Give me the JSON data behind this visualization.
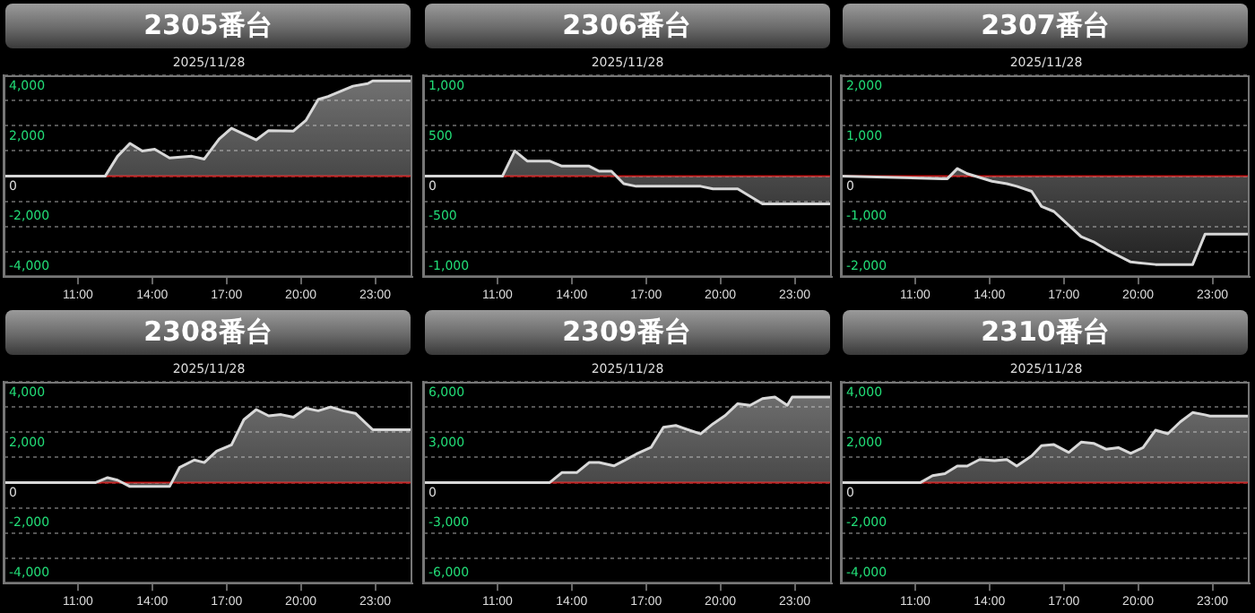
{
  "chart_data": [
    {
      "type": "area",
      "title": "2305番台",
      "subtitle": "2025/11/28",
      "xlim": [
        8,
        24.5
      ],
      "xticks": [
        {
          "value": 11,
          "label": "11:00"
        },
        {
          "value": 14,
          "label": "14:00"
        },
        {
          "value": 17,
          "label": "17:00"
        },
        {
          "value": 20,
          "label": "20:00"
        },
        {
          "value": 23,
          "label": "23:00"
        }
      ],
      "ylim": [
        -4000,
        4000
      ],
      "yticks": [
        {
          "value": 4000,
          "label": "4,000"
        },
        {
          "value": 3000,
          "label": null
        },
        {
          "value": 2000,
          "label": "2,000"
        },
        {
          "value": 1000,
          "label": null
        },
        0,
        {
          "value": -1000,
          "label": null
        },
        {
          "value": -2000,
          "label": "-2,000"
        },
        {
          "value": -3000,
          "label": null
        },
        {
          "value": -4000,
          "label": "-4,000"
        }
      ],
      "grid": "y",
      "legend": false,
      "marker": "none",
      "line_style": "solid",
      "ref_lines": [
        {
          "axis": "y",
          "value": 0,
          "color": "#c00000"
        }
      ],
      "x": [
        8,
        12.1,
        12.6,
        13.1,
        13.6,
        14.1,
        14.7,
        15.6,
        16.1,
        16.7,
        17.2,
        18.2,
        18.7,
        19.7,
        20.2,
        20.7,
        21.1,
        22.1,
        22.7,
        22.9,
        24.5
      ],
      "series": [
        {
          "color": "#d8d8d8",
          "values": [
            0,
            0,
            790,
            1300,
            1000,
            1070,
            720,
            790,
            680,
            1470,
            1900,
            1440,
            1810,
            1790,
            2210,
            3040,
            3160,
            3570,
            3670,
            3780,
            3780
          ]
        }
      ]
    },
    {
      "type": "area",
      "title": "2306番台",
      "subtitle": "2025/11/28",
      "xlim": [
        8,
        24.5
      ],
      "xticks": [
        {
          "value": 11,
          "label": "11:00"
        },
        {
          "value": 14,
          "label": "14:00"
        },
        {
          "value": 17,
          "label": "17:00"
        },
        {
          "value": 20,
          "label": "20:00"
        },
        {
          "value": 23,
          "label": "23:00"
        }
      ],
      "ylim": [
        -1000,
        1000
      ],
      "yticks": [
        {
          "value": 1000,
          "label": "1,000"
        },
        {
          "value": 750,
          "label": null
        },
        500,
        {
          "value": 250,
          "label": null
        },
        0,
        {
          "value": -250,
          "label": null
        },
        -500,
        {
          "value": -750,
          "label": null
        },
        {
          "value": -1000,
          "label": "-1,000"
        }
      ],
      "grid": "y",
      "legend": false,
      "marker": "none",
      "line_style": "solid",
      "ref_lines": [
        {
          "axis": "y",
          "value": 0,
          "color": "#c00000"
        }
      ],
      "x": [
        8,
        11.2,
        11.7,
        12.2,
        13.1,
        13.6,
        14.7,
        15.1,
        15.6,
        16.1,
        16.6,
        19.2,
        19.7,
        20.7,
        21.7,
        24.5
      ],
      "series": [
        {
          "color": "#d8d8d8",
          "values": [
            0,
            0,
            250,
            150,
            150,
            100,
            100,
            50,
            50,
            -75,
            -100,
            -100,
            -125,
            -125,
            -275,
            -275
          ]
        }
      ]
    },
    {
      "type": "area",
      "title": "2307番台",
      "subtitle": "2025/11/28",
      "xlim": [
        8,
        24.5
      ],
      "xticks": [
        {
          "value": 11,
          "label": "11:00"
        },
        {
          "value": 14,
          "label": "14:00"
        },
        {
          "value": 17,
          "label": "17:00"
        },
        {
          "value": 20,
          "label": "20:00"
        },
        {
          "value": 23,
          "label": "23:00"
        }
      ],
      "ylim": [
        -2000,
        2000
      ],
      "yticks": [
        {
          "value": 2000,
          "label": "2,000"
        },
        {
          "value": 1500,
          "label": null
        },
        {
          "value": 1000,
          "label": "1,000"
        },
        {
          "value": 500,
          "label": null
        },
        0,
        {
          "value": -500,
          "label": null
        },
        {
          "value": -1000,
          "label": "-1,000"
        },
        {
          "value": -1500,
          "label": null
        },
        {
          "value": -2000,
          "label": "-2,000"
        }
      ],
      "grid": "y",
      "legend": false,
      "marker": "none",
      "line_style": "solid",
      "ref_lines": [
        {
          "axis": "y",
          "value": 0,
          "color": "#c00000"
        }
      ],
      "x": [
        8,
        12.1,
        12.3,
        12.7,
        13.1,
        14.1,
        14.7,
        15.1,
        15.7,
        16.1,
        16.6,
        17.7,
        18.2,
        18.7,
        19.7,
        20.7,
        22.2,
        22.7,
        24.5
      ],
      "series": [
        {
          "color": "#d8d8d8",
          "values": [
            0,
            -50,
            -50,
            150,
            50,
            -100,
            -150,
            -200,
            -300,
            -600,
            -700,
            -1200,
            -1300,
            -1450,
            -1700,
            -1750,
            -1750,
            -1150,
            -1150
          ]
        }
      ]
    },
    {
      "type": "area",
      "title": "2308番台",
      "subtitle": "2025/11/28",
      "xlim": [
        8,
        24.5
      ],
      "xticks": [
        {
          "value": 11,
          "label": "11:00"
        },
        {
          "value": 14,
          "label": "14:00"
        },
        {
          "value": 17,
          "label": "17:00"
        },
        {
          "value": 20,
          "label": "20:00"
        },
        {
          "value": 23,
          "label": "23:00"
        }
      ],
      "ylim": [
        -4000,
        4000
      ],
      "yticks": [
        {
          "value": 4000,
          "label": "4,000"
        },
        {
          "value": 3000,
          "label": null
        },
        {
          "value": 2000,
          "label": "2,000"
        },
        {
          "value": 1000,
          "label": null
        },
        0,
        {
          "value": -1000,
          "label": null
        },
        {
          "value": -2000,
          "label": "-2,000"
        },
        {
          "value": -3000,
          "label": null
        },
        {
          "value": -4000,
          "label": "-4,000"
        }
      ],
      "grid": "y",
      "legend": false,
      "marker": "none",
      "line_style": "solid",
      "ref_lines": [
        {
          "axis": "y",
          "value": 0,
          "color": "#c00000"
        }
      ],
      "x": [
        8,
        11.7,
        12.2,
        12.6,
        13.1,
        14.7,
        15.1,
        15.7,
        16.1,
        16.6,
        17.2,
        17.7,
        18.2,
        18.7,
        19.2,
        19.7,
        20.2,
        20.7,
        21.2,
        21.7,
        22.2,
        22.9,
        24.5
      ],
      "series": [
        {
          "color": "#d8d8d8",
          "values": [
            0,
            0,
            200,
            100,
            -150,
            -150,
            600,
            900,
            800,
            1250,
            1500,
            2500,
            2900,
            2650,
            2700,
            2600,
            2950,
            2850,
            3000,
            2850,
            2750,
            2100,
            2100
          ]
        }
      ]
    },
    {
      "type": "area",
      "title": "2309番台",
      "subtitle": "2025/11/28",
      "xlim": [
        8,
        24.5
      ],
      "xticks": [
        {
          "value": 11,
          "label": "11:00"
        },
        {
          "value": 14,
          "label": "14:00"
        },
        {
          "value": 17,
          "label": "17:00"
        },
        {
          "value": 20,
          "label": "20:00"
        },
        {
          "value": 23,
          "label": "23:00"
        }
      ],
      "ylim": [
        -6000,
        6000
      ],
      "yticks": [
        {
          "value": 6000,
          "label": "6,000"
        },
        {
          "value": 4500,
          "label": null
        },
        {
          "value": 3000,
          "label": "3,000"
        },
        {
          "value": 1500,
          "label": null
        },
        0,
        {
          "value": -1500,
          "label": null
        },
        {
          "value": -3000,
          "label": "-3,000"
        },
        {
          "value": -4500,
          "label": null
        },
        {
          "value": -6000,
          "label": "-6,000"
        }
      ],
      "grid": "y",
      "legend": false,
      "marker": "none",
      "line_style": "solid",
      "ref_lines": [
        {
          "axis": "y",
          "value": 0,
          "color": "#c00000"
        }
      ],
      "x": [
        8,
        13.1,
        13.6,
        14.2,
        14.7,
        15.1,
        15.7,
        16.1,
        16.6,
        17.2,
        17.7,
        18.2,
        19.2,
        19.7,
        20.2,
        20.7,
        21.2,
        21.7,
        22.2,
        22.7,
        22.9,
        24.5
      ],
      "series": [
        {
          "color": "#d8d8d8",
          "values": [
            0,
            0,
            600,
            600,
            1200,
            1200,
            1000,
            1300,
            1700,
            2100,
            3300,
            3400,
            2900,
            3500,
            4000,
            4700,
            4600,
            5000,
            5100,
            4600,
            5100,
            5100
          ]
        }
      ]
    },
    {
      "type": "area",
      "title": "2310番台",
      "subtitle": "2025/11/28",
      "xlim": [
        8,
        24.5
      ],
      "xticks": [
        {
          "value": 11,
          "label": "11:00"
        },
        {
          "value": 14,
          "label": "14:00"
        },
        {
          "value": 17,
          "label": "17:00"
        },
        {
          "value": 20,
          "label": "20:00"
        },
        {
          "value": 23,
          "label": "23:00"
        }
      ],
      "ylim": [
        -4000,
        4000
      ],
      "yticks": [
        {
          "value": 4000,
          "label": "4,000"
        },
        {
          "value": 3000,
          "label": null
        },
        {
          "value": 2000,
          "label": "2,000"
        },
        {
          "value": 1000,
          "label": null
        },
        0,
        {
          "value": -1000,
          "label": null
        },
        {
          "value": -2000,
          "label": "-2,000"
        },
        {
          "value": -3000,
          "label": null
        },
        {
          "value": -4000,
          "label": "-4,000"
        }
      ],
      "grid": "y",
      "legend": false,
      "marker": "none",
      "line_style": "solid",
      "ref_lines": [
        {
          "axis": "y",
          "value": 0,
          "color": "#c00000"
        }
      ],
      "x": [
        8,
        11.2,
        11.7,
        12.2,
        12.7,
        13.1,
        13.6,
        14.2,
        14.7,
        15.1,
        15.7,
        16.1,
        16.6,
        17.2,
        17.7,
        18.2,
        18.7,
        19.2,
        19.7,
        20.2,
        20.7,
        21.2,
        21.7,
        22.2,
        22.7,
        22.9,
        24.5
      ],
      "series": [
        {
          "color": "#d8d8d8",
          "values": [
            0,
            0,
            280,
            360,
            660,
            660,
            920,
            870,
            920,
            660,
            1060,
            1470,
            1510,
            1200,
            1610,
            1560,
            1330,
            1390,
            1160,
            1390,
            2080,
            1940,
            2410,
            2780,
            2690,
            2640,
            2640
          ]
        }
      ]
    }
  ]
}
